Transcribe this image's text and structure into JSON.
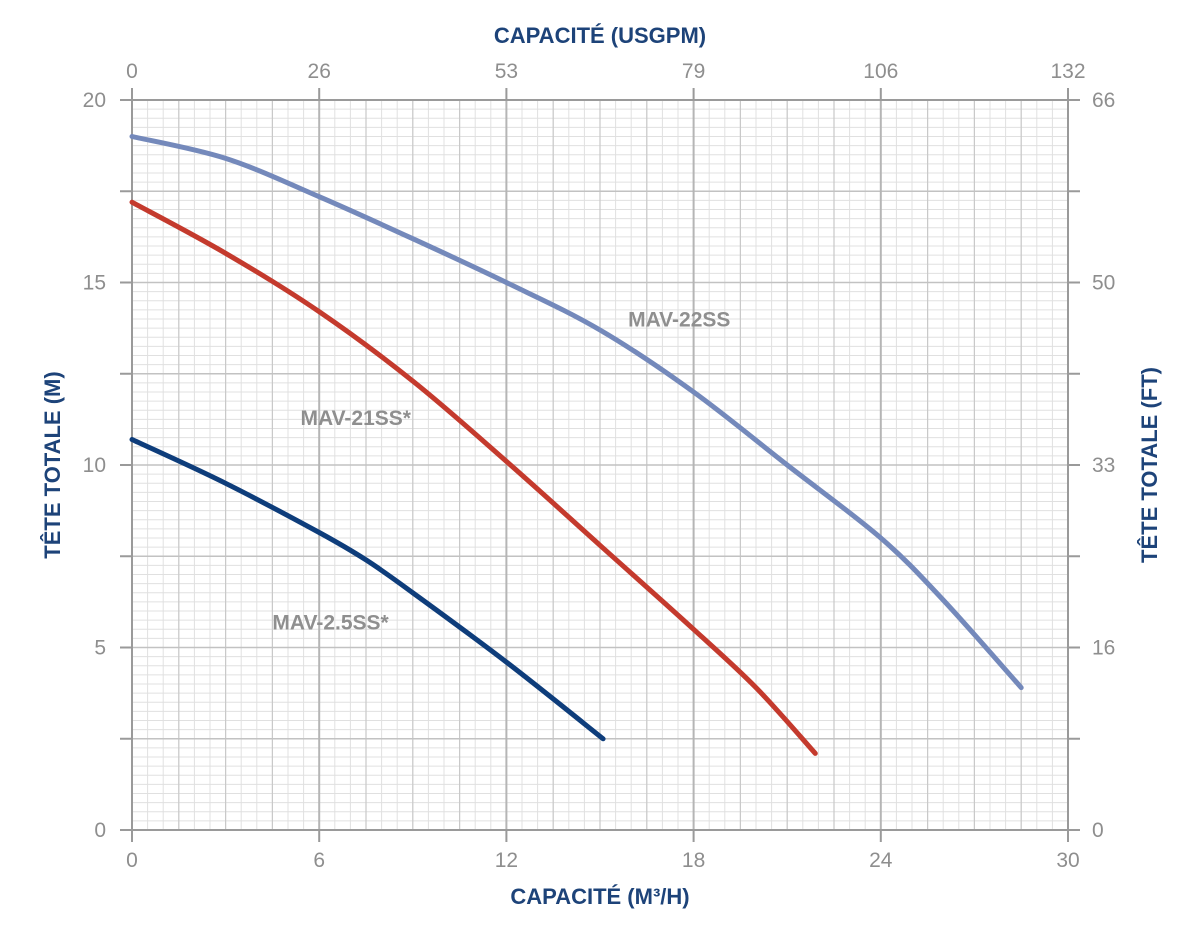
{
  "chart_data": {
    "type": "line",
    "xlabel_bottom": "CAPACITÉ (M³/H)",
    "xlabel_top": "CAPACITÉ (USGPM)",
    "ylabel_left": "TÊTE TOTALE (M)",
    "ylabel_right": "TÊTE TOTALE (FT)",
    "xlim": [
      0,
      30
    ],
    "ylim": [
      0,
      20
    ],
    "x_ticks": [
      "0",
      "6",
      "12",
      "18",
      "24",
      "30"
    ],
    "x_top_ticks": [
      "0",
      "26",
      "53",
      "79",
      "106",
      "132"
    ],
    "y_ticks": [
      "0",
      "5",
      "10",
      "15",
      "20"
    ],
    "y_right_ticks": [
      "0",
      "16",
      "33",
      "50",
      "66"
    ],
    "grid": true,
    "series": [
      {
        "name": "MAV-22SS",
        "color": "#7489bb",
        "points": [
          [
            0,
            19
          ],
          [
            3,
            18.4
          ],
          [
            6,
            17.35
          ],
          [
            9,
            16.2
          ],
          [
            12,
            15
          ],
          [
            15,
            13.7
          ],
          [
            18,
            12
          ],
          [
            21,
            10
          ],
          [
            24,
            8
          ],
          [
            26,
            6.3
          ],
          [
            28.5,
            3.9
          ]
        ]
      },
      {
        "name": "MAV-21SS*",
        "color": "#c43a2d",
        "points": [
          [
            0,
            17.2
          ],
          [
            3,
            15.8
          ],
          [
            6,
            14.2
          ],
          [
            9,
            12.3
          ],
          [
            12,
            10.1
          ],
          [
            15,
            7.8
          ],
          [
            18,
            5.5
          ],
          [
            20,
            3.9
          ],
          [
            21.9,
            2.1
          ]
        ]
      },
      {
        "name": "MAV-2.5SS*",
        "color": "#0e3d7b",
        "points": [
          [
            0,
            10.7
          ],
          [
            3,
            9.5
          ],
          [
            6,
            8.15
          ],
          [
            7.5,
            7.4
          ],
          [
            9,
            6.5
          ],
          [
            12,
            4.6
          ],
          [
            15.1,
            2.5
          ]
        ]
      }
    ]
  }
}
